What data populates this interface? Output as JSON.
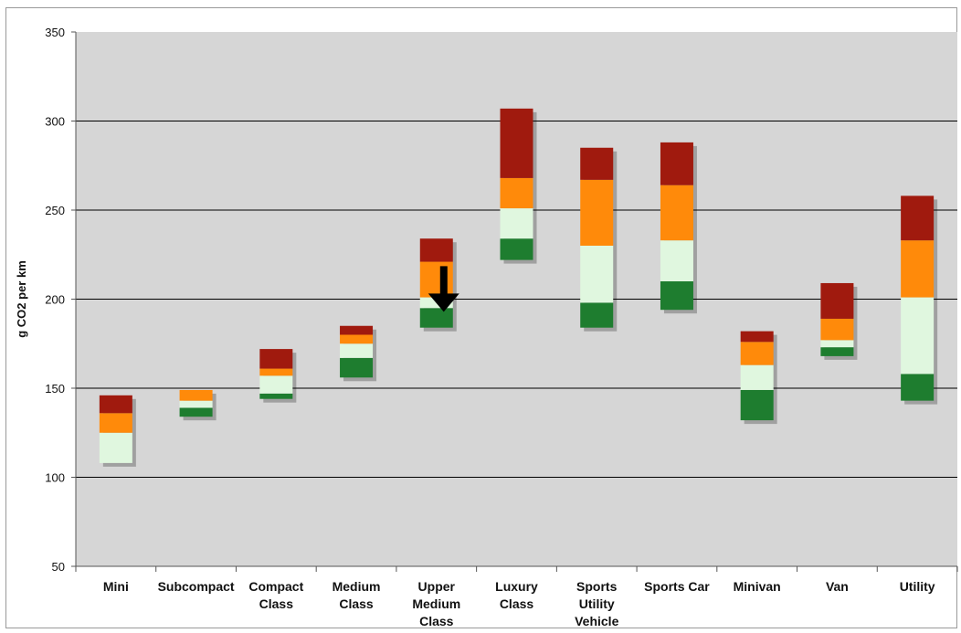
{
  "chart_data": {
    "type": "bar",
    "subtype": "floating-stacked",
    "title": "",
    "xlabel": "",
    "ylabel": "g CO2 per km",
    "ylim": [
      50,
      350
    ],
    "yticks": [
      50,
      100,
      150,
      200,
      250,
      300,
      350
    ],
    "grid": true,
    "legend": "none",
    "categories": [
      [
        "Mini"
      ],
      [
        "Subcompact"
      ],
      [
        "Compact",
        "Class"
      ],
      [
        "Medium",
        "Class"
      ],
      [
        "Upper",
        "Medium",
        "Class"
      ],
      [
        "Luxury",
        "Class"
      ],
      [
        "Sports",
        "Utility",
        "Vehicle"
      ],
      [
        "Sports Car"
      ],
      [
        "Minivan"
      ],
      [
        "Van"
      ],
      [
        "Utility"
      ]
    ],
    "series": [
      {
        "color": "#1e7d2f",
        "ranges": [
          [
            108,
            108
          ],
          [
            134,
            139
          ],
          [
            144,
            147
          ],
          [
            156,
            167
          ],
          [
            184,
            195
          ],
          [
            222,
            234
          ],
          [
            184,
            198
          ],
          [
            194,
            210
          ],
          [
            132,
            149
          ],
          [
            168,
            173
          ],
          [
            143,
            158
          ]
        ]
      },
      {
        "color": "#e0f7df",
        "ranges": [
          [
            108,
            125
          ],
          [
            139,
            143
          ],
          [
            147,
            157
          ],
          [
            167,
            175
          ],
          [
            195,
            201
          ],
          [
            234,
            251
          ],
          [
            198,
            230
          ],
          [
            210,
            233
          ],
          [
            149,
            163
          ],
          [
            173,
            177
          ],
          [
            158,
            201
          ]
        ]
      },
      {
        "color": "#ff8a0a",
        "ranges": [
          [
            125,
            136
          ],
          [
            143,
            149
          ],
          [
            157,
            161
          ],
          [
            175,
            180
          ],
          [
            201,
            221
          ],
          [
            251,
            268
          ],
          [
            230,
            267
          ],
          [
            233,
            264
          ],
          [
            163,
            176
          ],
          [
            177,
            189
          ],
          [
            201,
            233
          ]
        ]
      },
      {
        "color": "#a01a0e",
        "ranges": [
          [
            136,
            146
          ],
          [
            149,
            149
          ],
          [
            161,
            172
          ],
          [
            180,
            185
          ],
          [
            221,
            234
          ],
          [
            268,
            307
          ],
          [
            267,
            285
          ],
          [
            264,
            288
          ],
          [
            176,
            182
          ],
          [
            189,
            209
          ],
          [
            233,
            258
          ]
        ]
      }
    ],
    "annotations": [
      {
        "type": "arrow-down",
        "category_index": 4,
        "y_value": 198,
        "color": "#000000"
      }
    ],
    "colors": {
      "plot_background": "#d6d6d6",
      "gridline": "#000000"
    }
  }
}
